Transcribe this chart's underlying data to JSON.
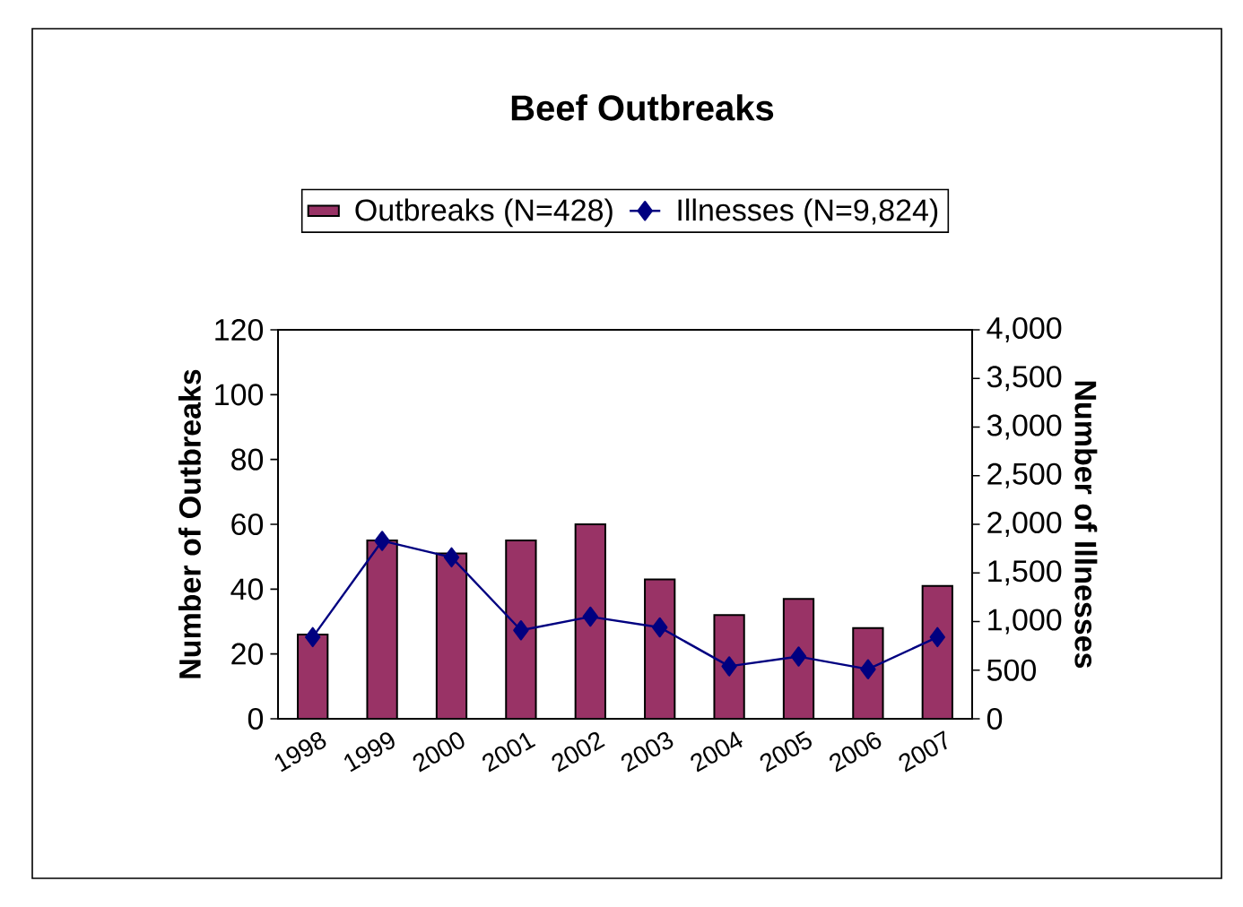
{
  "chart_data": {
    "type": "bar",
    "title": "Beef Outbreaks",
    "ylabel": "Number of Outbreaks",
    "y2label": "Number of Illnesses",
    "categories": [
      "1998",
      "1999",
      "2000",
      "2001",
      "2002",
      "2003",
      "2004",
      "2005",
      "2006",
      "2007"
    ],
    "series": [
      {
        "name": "Outbreaks (N=428)",
        "color": "#993366",
        "values": [
          26,
          55,
          51,
          55,
          60,
          43,
          32,
          37,
          28,
          41
        ]
      },
      {
        "name": "Illnesses (N=9,824)",
        "type": "line",
        "axis": "y2",
        "color": "#000080",
        "marker": "diamond",
        "line_style": "solid",
        "values": [
          840,
          1830,
          1660,
          910,
          1050,
          940,
          540,
          640,
          510,
          840
        ]
      }
    ],
    "ylim": [
      0,
      120
    ],
    "yticks": [
      0,
      20,
      40,
      60,
      80,
      100,
      120
    ],
    "y2lim": [
      0,
      4000
    ],
    "y2ticks": [
      0,
      500,
      {
        "value": 1000,
        "label": "1,000"
      },
      {
        "value": 1500,
        "label": "1,500"
      },
      {
        "value": 2000,
        "label": "2,000"
      },
      {
        "value": 2500,
        "label": "2,500"
      },
      {
        "value": 3000,
        "label": "3,000"
      },
      {
        "value": 3500,
        "label": "3,500"
      },
      {
        "value": 4000,
        "label": "4,000"
      }
    ],
    "legend": "top"
  }
}
